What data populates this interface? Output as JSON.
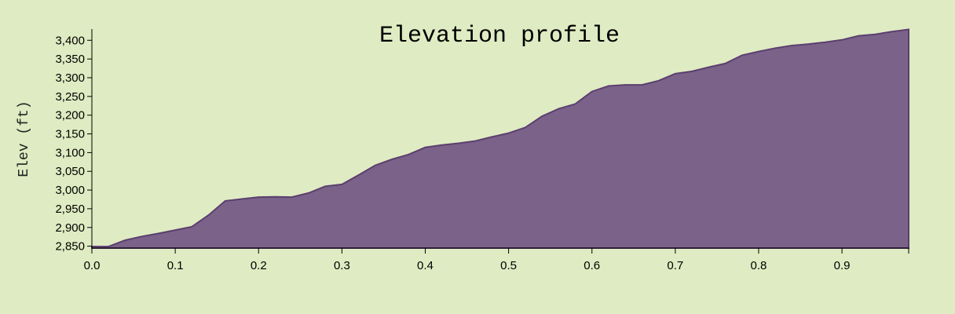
{
  "colors": {
    "background": "#dfebc2",
    "area_fill": "#7b6288",
    "area_stroke": "#5b3f70",
    "axis": "#000000"
  },
  "chart_data": {
    "type": "area",
    "title": "Elevation profile",
    "xlabel": "",
    "ylabel": "Elev (ft)",
    "xlim": [
      0.0,
      0.98
    ],
    "ylim": [
      2845,
      3430
    ],
    "grid": false,
    "x_ticks": [
      0.0,
      0.1,
      0.2,
      0.3,
      0.4,
      0.5,
      0.6,
      0.7,
      0.8,
      0.9
    ],
    "x_tick_labels": [
      "0.0",
      "0.1",
      "0.2",
      "0.3",
      "0.4",
      "0.5",
      "0.6",
      "0.7",
      "0.8",
      "0.9"
    ],
    "y_ticks": [
      2850,
      2900,
      2950,
      3000,
      3050,
      3100,
      3150,
      3200,
      3250,
      3300,
      3350,
      3400
    ],
    "y_tick_labels": [
      "2,850",
      "2,900",
      "2,950",
      "3,000",
      "3,050",
      "3,100",
      "3,150",
      "3,200",
      "3,250",
      "3,300",
      "3,350",
      "3,400"
    ],
    "x": [
      0.0,
      0.02,
      0.04,
      0.06,
      0.08,
      0.1,
      0.12,
      0.14,
      0.16,
      0.18,
      0.2,
      0.22,
      0.24,
      0.26,
      0.28,
      0.3,
      0.32,
      0.34,
      0.36,
      0.38,
      0.4,
      0.42,
      0.44,
      0.46,
      0.48,
      0.5,
      0.52,
      0.54,
      0.56,
      0.58,
      0.6,
      0.62,
      0.64,
      0.66,
      0.68,
      0.7,
      0.72,
      0.74,
      0.76,
      0.78,
      0.8,
      0.82,
      0.84,
      0.86,
      0.88,
      0.9,
      0.92,
      0.94,
      0.96,
      0.98
    ],
    "series": [
      {
        "values": [
          2849,
          2849,
          2866,
          2876,
          2884,
          2893,
          2902,
          2933,
          2971,
          2976,
          2981,
          2982,
          2981,
          2992,
          3010,
          3015,
          3040,
          3066,
          3082,
          3095,
          3114,
          3120,
          3125,
          3131,
          3142,
          3152,
          3167,
          3197,
          3217,
          3230,
          3263,
          3278,
          3281,
          3281,
          3292,
          3311,
          3317,
          3328,
          3338,
          3360,
          3370,
          3379,
          3386,
          3390,
          3395,
          3401,
          3412,
          3416,
          3423,
          3429
        ]
      }
    ]
  }
}
